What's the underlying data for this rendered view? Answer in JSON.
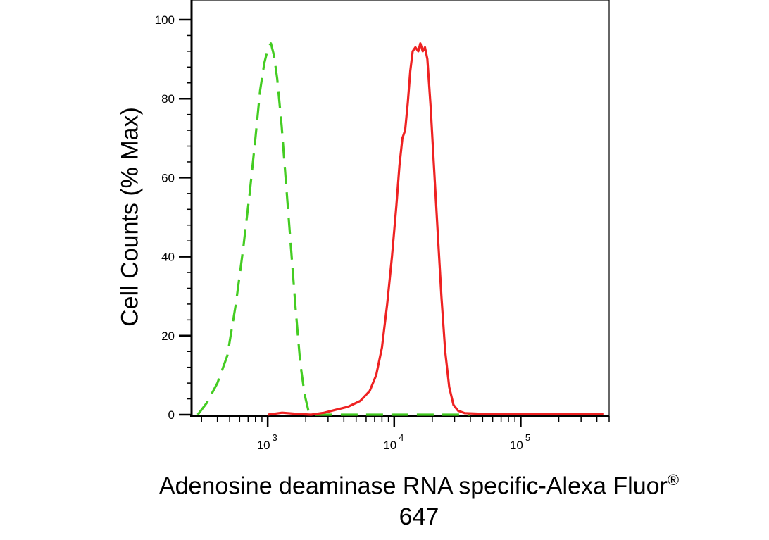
{
  "chart_data": {
    "type": "line",
    "title": "",
    "ylabel": "Cell Counts (% Max)",
    "xlabel": {
      "line1_text": "Adenosine deaminase RNA specific-Alexa Fluor",
      "line1_superscript": "®",
      "line2": "647"
    },
    "x_scale": "log",
    "xlim": [
      250,
      500000
    ],
    "ylim": [
      0,
      100
    ],
    "y_ticks": [
      0,
      20,
      40,
      60,
      80,
      100
    ],
    "y_tick_labels": [
      "0",
      "20",
      "40",
      "60",
      "80",
      "100"
    ],
    "x_ticks": [
      1000,
      10000,
      100000
    ],
    "x_tick_labels": [
      {
        "base": "10",
        "exp": "3"
      },
      {
        "base": "10",
        "exp": "4"
      },
      {
        "base": "10",
        "exp": "5"
      }
    ],
    "grid": false,
    "legend": "none",
    "series": [
      {
        "color": "#44cc22",
        "style": "dashed",
        "points": [
          [
            280,
            0
          ],
          [
            330,
            3
          ],
          [
            400,
            8
          ],
          [
            480,
            15
          ],
          [
            560,
            28
          ],
          [
            640,
            42
          ],
          [
            720,
            56
          ],
          [
            800,
            70
          ],
          [
            870,
            82
          ],
          [
            940,
            89
          ],
          [
            1010,
            93
          ],
          [
            1060,
            94
          ],
          [
            1120,
            91
          ],
          [
            1190,
            85
          ],
          [
            1290,
            73
          ],
          [
            1400,
            58
          ],
          [
            1530,
            42
          ],
          [
            1660,
            27
          ],
          [
            1810,
            13
          ],
          [
            1960,
            5
          ],
          [
            2100,
            1
          ],
          [
            2300,
            0
          ],
          [
            2800,
            0
          ],
          [
            5000,
            0
          ],
          [
            8000,
            0
          ],
          [
            12000,
            0
          ],
          [
            20000,
            0
          ],
          [
            40000,
            0
          ]
        ]
      },
      {
        "color": "#ee2222",
        "style": "solid",
        "points": [
          [
            1000,
            0
          ],
          [
            1300,
            0.5
          ],
          [
            1700,
            0.2
          ],
          [
            2200,
            0
          ],
          [
            2800,
            0.5
          ],
          [
            3400,
            1.2
          ],
          [
            4300,
            2
          ],
          [
            5400,
            3.5
          ],
          [
            6400,
            6
          ],
          [
            7200,
            10
          ],
          [
            8000,
            17
          ],
          [
            8800,
            28
          ],
          [
            9600,
            40
          ],
          [
            10400,
            53
          ],
          [
            11000,
            63
          ],
          [
            11600,
            70
          ],
          [
            12200,
            72
          ],
          [
            12800,
            79
          ],
          [
            13400,
            87
          ],
          [
            14000,
            92
          ],
          [
            14700,
            93
          ],
          [
            15500,
            92
          ],
          [
            16100,
            94
          ],
          [
            16800,
            92
          ],
          [
            17500,
            93
          ],
          [
            18300,
            90
          ],
          [
            19400,
            78
          ],
          [
            20600,
            63
          ],
          [
            22000,
            47
          ],
          [
            23600,
            30
          ],
          [
            25300,
            16
          ],
          [
            27200,
            7
          ],
          [
            29400,
            2.5
          ],
          [
            32000,
            1
          ],
          [
            36000,
            0.4
          ],
          [
            50000,
            0.2
          ],
          [
            100000,
            0.1
          ],
          [
            200000,
            0.2
          ],
          [
            450000,
            0.2
          ]
        ]
      }
    ]
  }
}
